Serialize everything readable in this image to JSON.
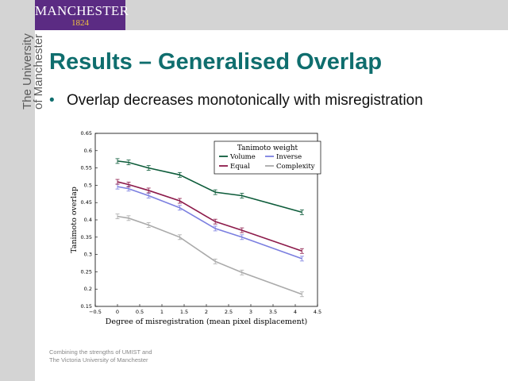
{
  "logo": {
    "line1": "MANCHESTER",
    "line2": "1824"
  },
  "side_text": {
    "line1": "The University",
    "line2": "of Manchester"
  },
  "slide": {
    "title": "Results – Generalised Overlap",
    "bullet": "Overlap decreases monotonically with misregistration"
  },
  "footer": {
    "line1": "Combining the strengths of UMIST and",
    "line2": "The Victoria University of Manchester"
  },
  "colors": {
    "header_bar": "#d4d4d4",
    "logo_bg": "#5b2b83",
    "title": "#0f6e6e"
  },
  "chart_data": {
    "type": "line",
    "xlabel": "Degree of misregistration (mean pixel displacement)",
    "ylabel": "Tanimoto overlap",
    "xlim": [
      -0.5,
      4.5
    ],
    "ylim": [
      0.15,
      0.65
    ],
    "xticks": [
      "−0.5",
      "0",
      "0.5",
      "1",
      "1.5",
      "2",
      "2.5",
      "3",
      "3.5",
      "4",
      "4.5"
    ],
    "yticks": [
      "0.15",
      "0.2",
      "0.25",
      "0.3",
      "0.35",
      "0.4",
      "0.45",
      "0.5",
      "0.55",
      "0.6",
      "0.65"
    ],
    "grid": false,
    "legend": {
      "title": "Tanimoto weight",
      "position": "top-right"
    },
    "x": [
      0,
      0.25,
      0.7,
      1.4,
      2.2,
      2.8,
      4.15
    ],
    "series": [
      {
        "name": "Volume",
        "color": "#0d5c3a",
        "values": [
          0.57,
          0.566,
          0.55,
          0.53,
          0.48,
          0.47,
          0.422
        ]
      },
      {
        "name": "Inverse",
        "color": "#7b7fe0",
        "values": [
          0.496,
          0.49,
          0.47,
          0.435,
          0.375,
          0.35,
          0.288
        ]
      },
      {
        "name": "Equal",
        "color": "#8c1a4a",
        "values": [
          0.51,
          0.502,
          0.485,
          0.455,
          0.395,
          0.37,
          0.31
        ]
      },
      {
        "name": "Complexity",
        "color": "#aaaaaa",
        "values": [
          0.41,
          0.405,
          0.385,
          0.35,
          0.28,
          0.248,
          0.185
        ]
      }
    ]
  }
}
